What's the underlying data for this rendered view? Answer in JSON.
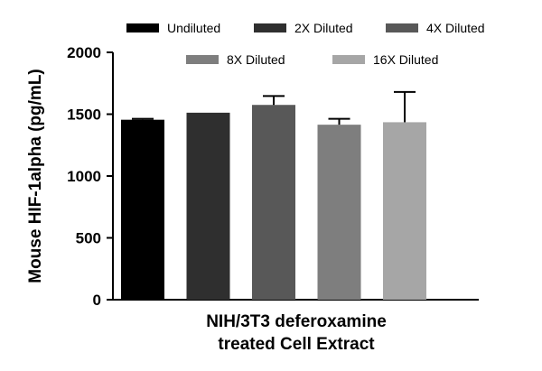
{
  "chart_data": {
    "type": "bar",
    "xlabel": [
      "NIH/3T3 deferoxamine",
      "treated Cell Extract"
    ],
    "ylabel": "Mouse HIF-1alpha (pg/mL)",
    "ylim": [
      0,
      2000
    ],
    "yticks": [
      0,
      500,
      1000,
      1500,
      2000
    ],
    "legend_position": "top",
    "series": [
      {
        "name": "Undiluted",
        "value": 1455,
        "error": 8,
        "color": "#000000"
      },
      {
        "name": "2X Diluted",
        "value": 1512,
        "error": 0,
        "color": "#2f2f2f"
      },
      {
        "name": "4X Diluted",
        "value": 1575,
        "error": 72,
        "color": "#585858"
      },
      {
        "name": "8X Diluted",
        "value": 1415,
        "error": 48,
        "color": "#7e7e7e"
      },
      {
        "name": "16X Diluted",
        "value": 1435,
        "error": 245,
        "color": "#a6a6a6"
      }
    ]
  }
}
